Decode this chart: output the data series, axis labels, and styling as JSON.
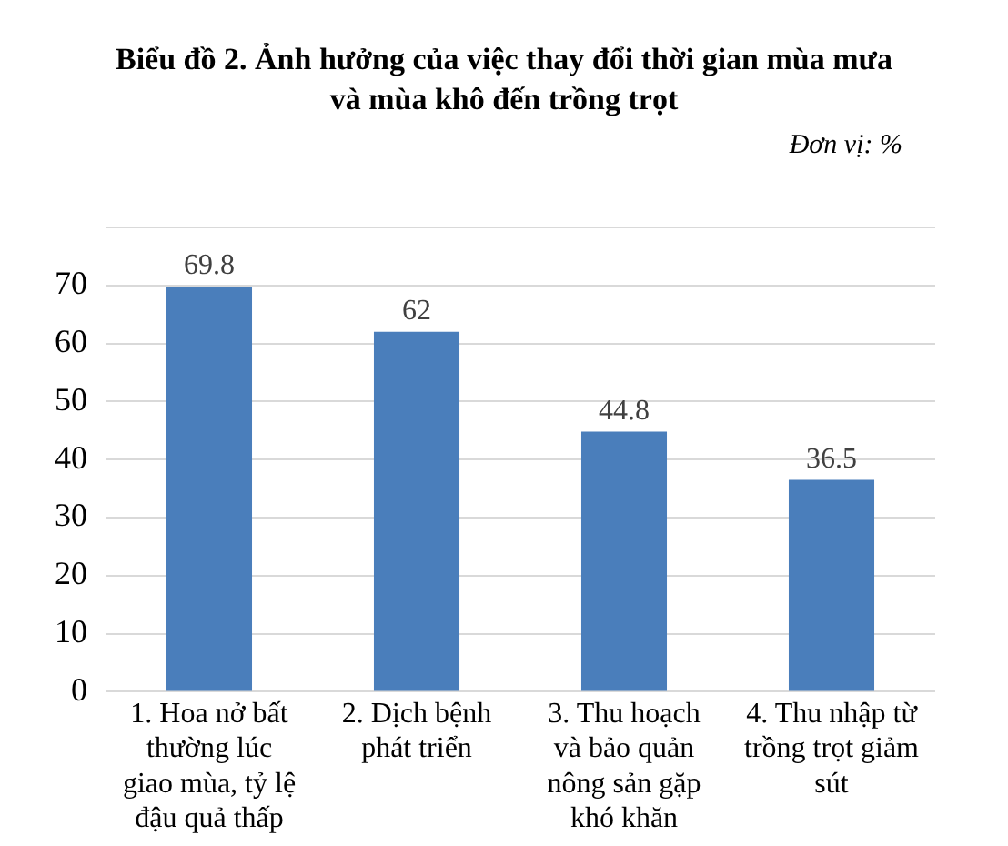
{
  "chart_data": {
    "type": "bar",
    "title": "Biểu đồ 2. Ảnh hưởng của việc thay đổi thời gian mùa mưa và mùa khô đến trồng trọt",
    "subtitle": "Đơn vị: %",
    "categories": [
      "1. Hoa nở bất thường lúc giao mùa, tỷ lệ đậu quả thấp",
      "2. Dịch bệnh phát triển",
      "3. Thu hoạch và bảo quản nông sản gặp khó khăn",
      "4. Thu nhập từ trồng trọt giảm sút"
    ],
    "values": [
      69.8,
      62,
      44.8,
      36.5
    ],
    "color": "#4a7ebb",
    "ylim": [
      0,
      80
    ],
    "yticks": [
      0,
      10,
      20,
      30,
      40,
      50,
      60,
      70,
      {
        "value": 80,
        "label": null
      }
    ],
    "grid": "y",
    "data_labels": true
  }
}
